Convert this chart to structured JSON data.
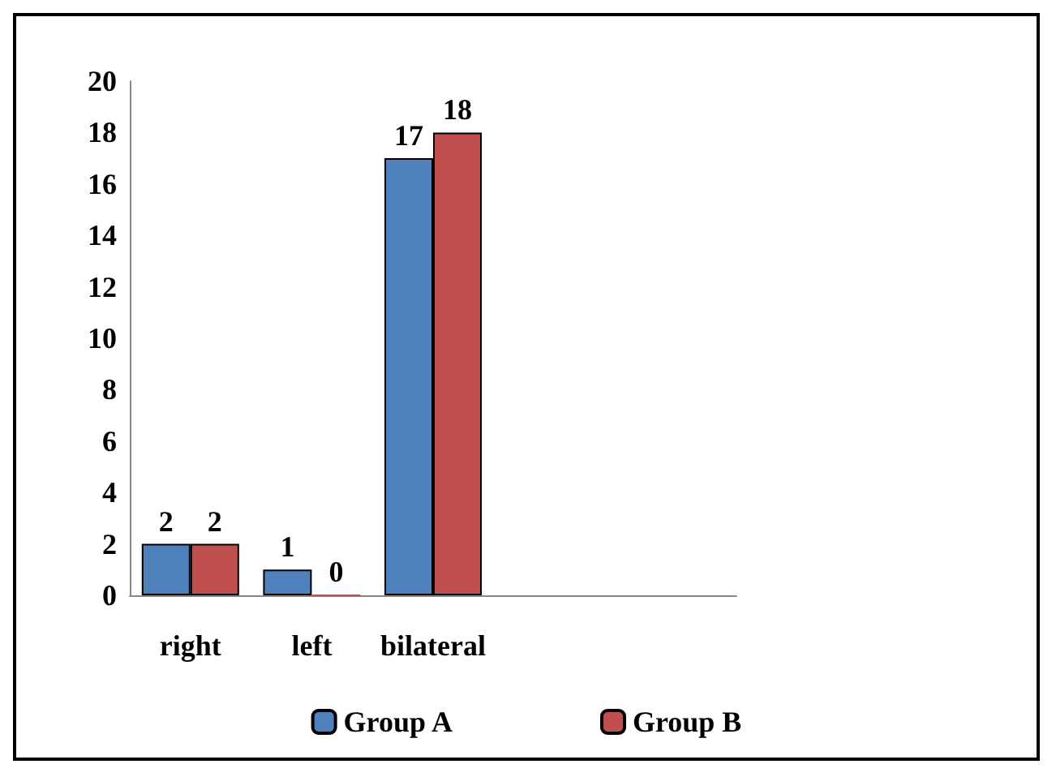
{
  "chart_data": {
    "type": "bar",
    "categories": [
      "right",
      "left",
      "bilateral",
      null,
      null
    ],
    "series": [
      {
        "name": "Group A",
        "color": "#4f81bd",
        "values": [
          2,
          1,
          17,
          null,
          null
        ]
      },
      {
        "name": "Group B",
        "color": "#c0504d",
        "values": [
          2,
          0,
          18,
          null,
          null
        ]
      }
    ],
    "ylim": [
      0,
      20
    ],
    "yticks": [
      0,
      2,
      4,
      6,
      8,
      10,
      12,
      14,
      16,
      18,
      20
    ],
    "grid": false,
    "legend": "bottom",
    "data_labels": true
  }
}
